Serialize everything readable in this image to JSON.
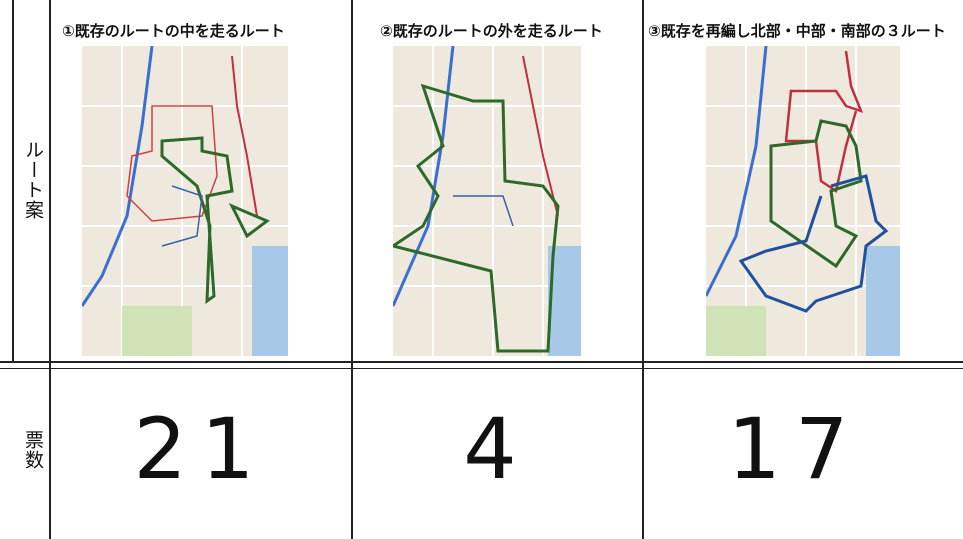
{
  "row_headers": [
    "ルート案",
    "票数"
  ],
  "columns": [
    {
      "title": "①既存のルートの中を走るルート",
      "votes": 21
    },
    {
      "title": "②既存のルートの外を走るルート",
      "votes": 4
    },
    {
      "title": "③既存を再編し北部・中部・南部の３ルート",
      "votes": 17
    }
  ]
}
